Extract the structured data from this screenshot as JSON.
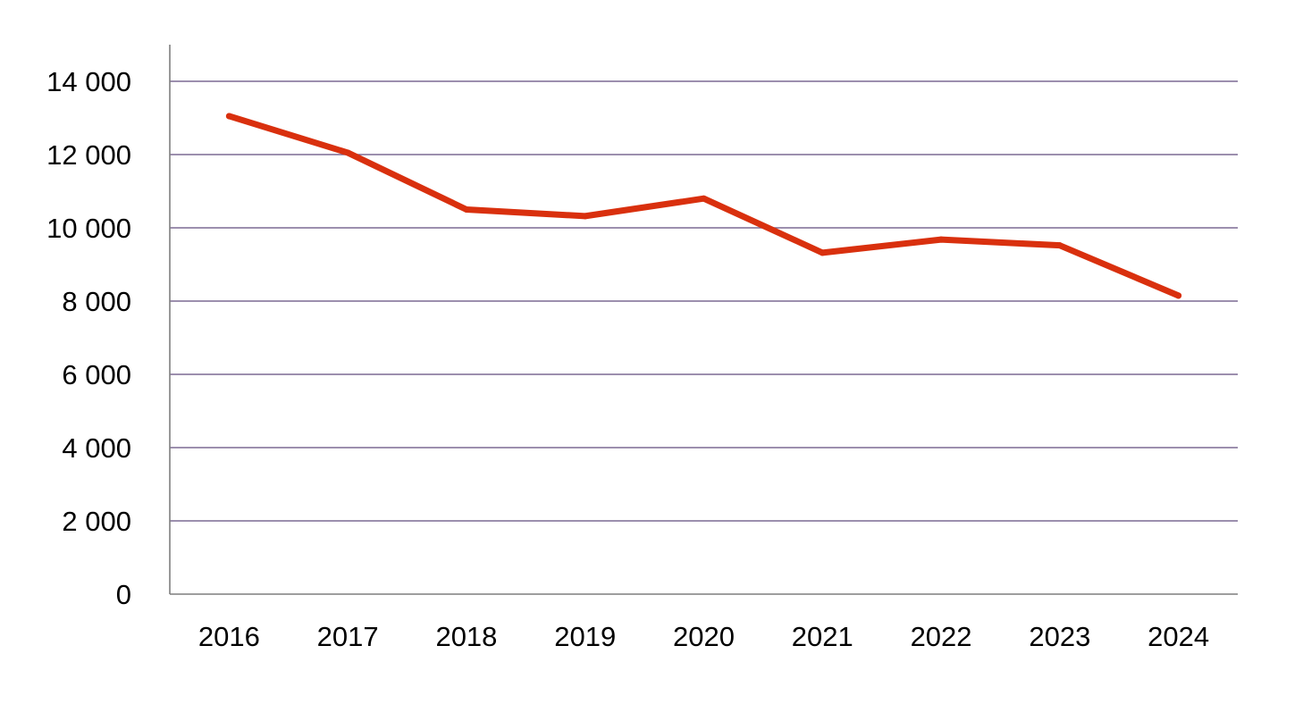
{
  "chart_data": {
    "type": "line",
    "title": "",
    "xlabel": "",
    "ylabel": "",
    "categories": [
      "2016",
      "2017",
      "2018",
      "2019",
      "2020",
      "2021",
      "2022",
      "2023",
      "2024"
    ],
    "series": [
      {
        "values": [
          13050,
          12050,
          10500,
          10320,
          10800,
          9320,
          9680,
          9520,
          8150
        ],
        "color": "#d9300e"
      }
    ],
    "ylim": [
      0,
      15000
    ],
    "yticks": [
      0,
      2000,
      4000,
      6000,
      8000,
      10000,
      12000,
      14000
    ],
    "ytick_labels": [
      "0",
      "2 000",
      "4 000",
      "6 000",
      "8 000",
      "10 000",
      "12 000",
      "14 000"
    ],
    "grid": true,
    "legend": "none",
    "colors": {
      "gridline": "#7b6a93",
      "axis": "#7f7f7f",
      "series": "#d9300e"
    }
  }
}
